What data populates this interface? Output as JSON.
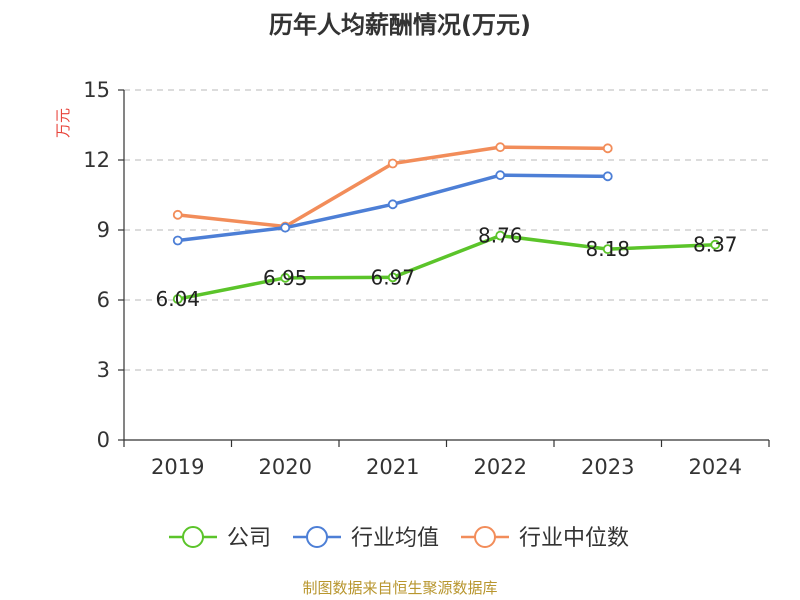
{
  "chart_data": {
    "type": "line",
    "title": "历年人均薪酬情况(万元)",
    "ylabel": "万元",
    "xlabel": "",
    "categories": [
      "2019",
      "2020",
      "2021",
      "2022",
      "2023",
      "2024"
    ],
    "ylim": [
      0,
      15
    ],
    "yticks": [
      0,
      3,
      6,
      9,
      12,
      15
    ],
    "grid": true,
    "legend_position": "bottom",
    "series": [
      {
        "name": "公司",
        "color": "#5bc42a",
        "values": [
          6.04,
          6.95,
          6.97,
          8.76,
          8.18,
          8.37
        ],
        "labels": [
          "6.04",
          "6.95",
          "6.97",
          "8.76",
          "8.18",
          "8.37"
        ]
      },
      {
        "name": "行业均值",
        "color": "#4d7fd6",
        "values": [
          8.55,
          9.1,
          10.1,
          11.35,
          11.3,
          null
        ]
      },
      {
        "name": "行业中位数",
        "color": "#f28d5a",
        "values": [
          9.65,
          9.15,
          11.85,
          12.55,
          12.5,
          null
        ]
      }
    ]
  },
  "source": "制图数据来自恒生聚源数据库"
}
